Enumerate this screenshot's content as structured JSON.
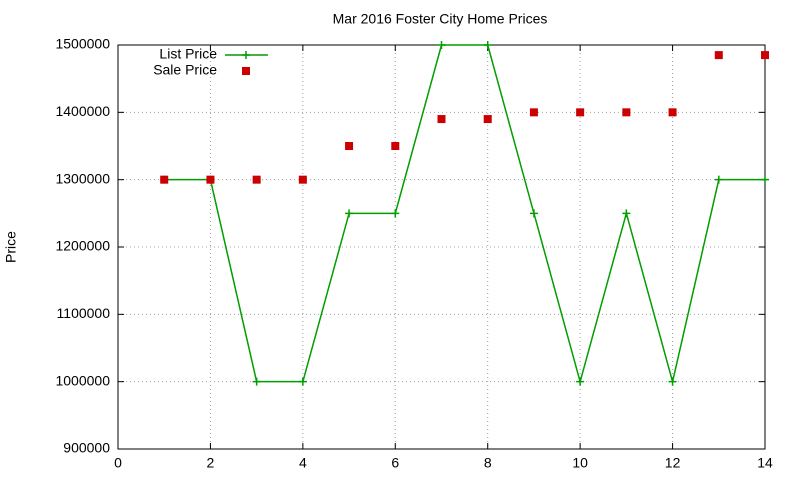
{
  "chart_data": {
    "type": "line",
    "title": "Mar 2016 Foster City Home Prices",
    "y_label": "Price",
    "x": [
      1,
      2,
      3,
      4,
      5,
      6,
      7,
      8,
      9,
      10,
      11,
      12,
      13,
      14
    ],
    "series": [
      {
        "name": "List Price",
        "color": "#009e00",
        "mode": "linespoints",
        "marker": "plus",
        "values": [
          1300000,
          1300000,
          1000000,
          1000000,
          1250000,
          1250000,
          1500000,
          1500000,
          1250000,
          1000000,
          1250000,
          1000000,
          1300000,
          1300000
        ]
      },
      {
        "name": "Sale Price",
        "color": "#cc0000",
        "mode": "points",
        "marker": "square",
        "values": [
          1300000,
          1300000,
          1300000,
          1300000,
          1350000,
          1350000,
          1390000,
          1390000,
          1400000,
          1400000,
          1400000,
          1400000,
          1485000,
          1485000
        ]
      }
    ],
    "xlim": [
      0,
      14
    ],
    "xticks": [
      0,
      2,
      4,
      6,
      8,
      10,
      12,
      14
    ],
    "ylim": [
      900000,
      1500000
    ],
    "yticks": [
      900000,
      1000000,
      1100000,
      1200000,
      1300000,
      1400000,
      1500000
    ],
    "grid": true,
    "legend": "top-left"
  }
}
